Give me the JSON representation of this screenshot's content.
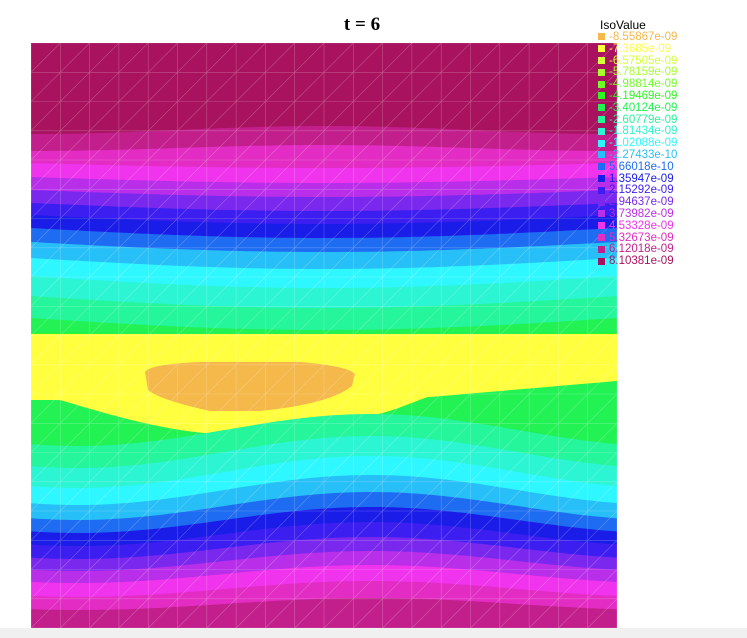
{
  "chart_data": {
    "type": "heatmap",
    "title": "t = 6",
    "legend": {
      "title": "IsoValue",
      "placement": "right",
      "entries": [
        {
          "label": "-8.55867e-09",
          "color": "#f5b84a"
        },
        {
          "label": "-7.3685e-09",
          "color": "#ffff3f"
        },
        {
          "label": "-6.57505e-09",
          "color": "#d6ff3a"
        },
        {
          "label": "-5.78159e-09",
          "color": "#a6ff2d"
        },
        {
          "label": "-4.98814e-09",
          "color": "#70ff26"
        },
        {
          "label": "-4.19469e-09",
          "color": "#2cf71f"
        },
        {
          "label": "-3.40124e-09",
          "color": "#22f254"
        },
        {
          "label": "-2.60779e-09",
          "color": "#25f59b"
        },
        {
          "label": "-1.81434e-09",
          "color": "#2cf5d3"
        },
        {
          "label": "-1.02088e-09",
          "color": "#2ff7ff"
        },
        {
          "label": "-2.27433e-10",
          "color": "#27bff7"
        },
        {
          "label": "5.66018e-10",
          "color": "#1e6cf2"
        },
        {
          "label": "1.35947e-09",
          "color": "#1a1ce8"
        },
        {
          "label": "2.15292e-09",
          "color": "#3d1ef0"
        },
        {
          "label": "2.94637e-09",
          "color": "#7b28ee"
        },
        {
          "label": "3.73982e-09",
          "color": "#b82ee9"
        },
        {
          "label": "4.53328e-09",
          "color": "#f033ec"
        },
        {
          "label": "5.32673e-09",
          "color": "#e22cc3"
        },
        {
          "label": "6.12018e-09",
          "color": "#c21f8c"
        },
        {
          "label": "8.10381e-09",
          "color": "#a8125e"
        }
      ]
    },
    "grid": true
  }
}
